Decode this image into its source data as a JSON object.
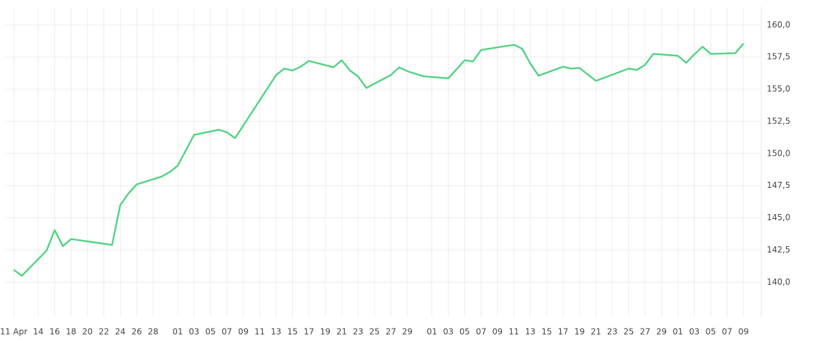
{
  "chart_data": {
    "type": "line",
    "x": [
      "04-11",
      "04-12",
      "04-15",
      "04-16",
      "04-17",
      "04-18",
      "04-23",
      "04-24",
      "04-25",
      "04-26",
      "04-29",
      "04-30",
      "05-01",
      "05-03",
      "05-06",
      "05-07",
      "05-08",
      "05-13",
      "05-14",
      "05-15",
      "05-16",
      "05-17",
      "05-20",
      "05-21",
      "05-22",
      "05-23",
      "05-24",
      "05-27",
      "05-28",
      "05-29",
      "05-31",
      "06-03",
      "06-05",
      "06-06",
      "06-07",
      "06-11",
      "06-12",
      "06-13",
      "06-14",
      "06-17",
      "06-18",
      "06-19",
      "06-21",
      "06-25",
      "06-26",
      "06-27",
      "06-28",
      "07-01",
      "07-02",
      "07-03",
      "07-04",
      "07-05",
      "07-08",
      "07-09"
    ],
    "values": [
      140.96,
      140.5,
      142.45,
      144.05,
      142.8,
      143.35,
      142.9,
      146.0,
      146.9,
      147.6,
      148.2,
      148.55,
      149.05,
      151.45,
      151.85,
      151.65,
      151.2,
      156.1,
      156.6,
      156.45,
      156.75,
      157.2,
      156.7,
      157.25,
      156.45,
      156.0,
      155.1,
      156.1,
      156.7,
      156.4,
      156.0,
      155.85,
      157.25,
      157.15,
      158.05,
      158.45,
      158.15,
      157.0,
      156.05,
      156.75,
      156.6,
      156.65,
      155.65,
      156.6,
      156.5,
      156.9,
      157.75,
      157.6,
      157.05,
      157.7,
      158.3,
      157.75,
      157.8,
      158.55
    ],
    "color": "#52d383",
    "xlim": [
      "04-10",
      "07-11"
    ],
    "xticks": [
      {
        "value": "04-11",
        "label": "11 Apr"
      },
      {
        "value": "04-14",
        "label": "14"
      },
      {
        "value": "04-16",
        "label": "16"
      },
      {
        "value": "04-18",
        "label": "18"
      },
      {
        "value": "04-20",
        "label": "20"
      },
      {
        "value": "04-22",
        "label": "22"
      },
      {
        "value": "04-24",
        "label": "24"
      },
      {
        "value": "04-26",
        "label": "26"
      },
      {
        "value": "04-28",
        "label": "28"
      },
      {
        "value": "05-01",
        "label": "01"
      },
      {
        "value": "05-03",
        "label": "03"
      },
      {
        "value": "05-05",
        "label": "05"
      },
      {
        "value": "05-07",
        "label": "07"
      },
      {
        "value": "05-09",
        "label": "09"
      },
      {
        "value": "05-11",
        "label": "11"
      },
      {
        "value": "05-13",
        "label": "13"
      },
      {
        "value": "05-15",
        "label": "15"
      },
      {
        "value": "05-17",
        "label": "17"
      },
      {
        "value": "05-19",
        "label": "19"
      },
      {
        "value": "05-21",
        "label": "21"
      },
      {
        "value": "05-23",
        "label": "23"
      },
      {
        "value": "05-25",
        "label": "25"
      },
      {
        "value": "05-27",
        "label": "27"
      },
      {
        "value": "05-29",
        "label": "29"
      },
      {
        "value": "06-01",
        "label": "01"
      },
      {
        "value": "06-03",
        "label": "03"
      },
      {
        "value": "06-05",
        "label": "05"
      },
      {
        "value": "06-07",
        "label": "07"
      },
      {
        "value": "06-09",
        "label": "09"
      },
      {
        "value": "06-11",
        "label": "11"
      },
      {
        "value": "06-13",
        "label": "13"
      },
      {
        "value": "06-15",
        "label": "15"
      },
      {
        "value": "06-17",
        "label": "17"
      },
      {
        "value": "06-19",
        "label": "19"
      },
      {
        "value": "06-21",
        "label": "21"
      },
      {
        "value": "06-23",
        "label": "23"
      },
      {
        "value": "06-25",
        "label": "25"
      },
      {
        "value": "06-27",
        "label": "27"
      },
      {
        "value": "06-29",
        "label": "29"
      },
      {
        "value": "07-01",
        "label": "01"
      },
      {
        "value": "07-03",
        "label": "03"
      },
      {
        "value": "07-05",
        "label": "05"
      },
      {
        "value": "07-07",
        "label": "07"
      },
      {
        "value": "07-09",
        "label": "09"
      }
    ],
    "ylim": [
      137.3,
      161.4
    ],
    "yticks": [
      {
        "value": 140,
        "label": "140,0"
      },
      {
        "value": 142.5,
        "label": "142,5"
      },
      {
        "value": 145,
        "label": "145,0"
      },
      {
        "value": 147.5,
        "label": "147,5"
      },
      {
        "value": 150,
        "label": "150,0"
      },
      {
        "value": 152.5,
        "label": "152,5"
      },
      {
        "value": 155,
        "label": "155,0"
      },
      {
        "value": 157.5,
        "label": "157,5"
      },
      {
        "value": 160,
        "label": "160,0"
      }
    ],
    "grid": true
  }
}
